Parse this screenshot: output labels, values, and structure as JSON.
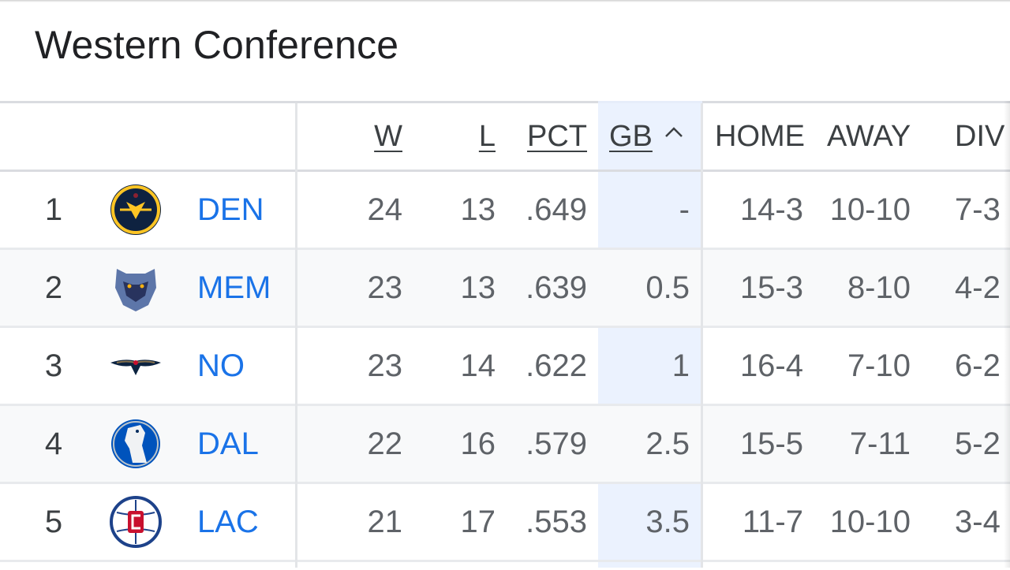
{
  "title": "Western Conference",
  "columns": {
    "w": "W",
    "l": "L",
    "pct": "PCT",
    "gb": "GB",
    "home": "HOME",
    "away": "AWAY",
    "div": "DIV"
  },
  "colors": {
    "link": "#1a73e8",
    "gb_highlight": "#e8f0fe"
  },
  "rows": [
    {
      "rank": "1",
      "team": "DEN",
      "logo": "denver-nuggets-logo",
      "w": "24",
      "l": "13",
      "pct": ".649",
      "gb": "-",
      "home": "14-3",
      "away": "10-10",
      "div": "7-3"
    },
    {
      "rank": "2",
      "team": "MEM",
      "logo": "memphis-grizzlies-logo",
      "w": "23",
      "l": "13",
      "pct": ".639",
      "gb": "0.5",
      "home": "15-3",
      "away": "8-10",
      "div": "4-2"
    },
    {
      "rank": "3",
      "team": "NO",
      "logo": "new-orleans-pelicans-logo",
      "w": "23",
      "l": "14",
      "pct": ".622",
      "gb": "1",
      "home": "16-4",
      "away": "7-10",
      "div": "6-2"
    },
    {
      "rank": "4",
      "team": "DAL",
      "logo": "dallas-mavericks-logo",
      "w": "22",
      "l": "16",
      "pct": ".579",
      "gb": "2.5",
      "home": "15-5",
      "away": "7-11",
      "div": "5-2"
    },
    {
      "rank": "5",
      "team": "LAC",
      "logo": "la-clippers-logo",
      "w": "21",
      "l": "17",
      "pct": ".553",
      "gb": "3.5",
      "home": "11-7",
      "away": "10-10",
      "div": "3-4"
    }
  ]
}
